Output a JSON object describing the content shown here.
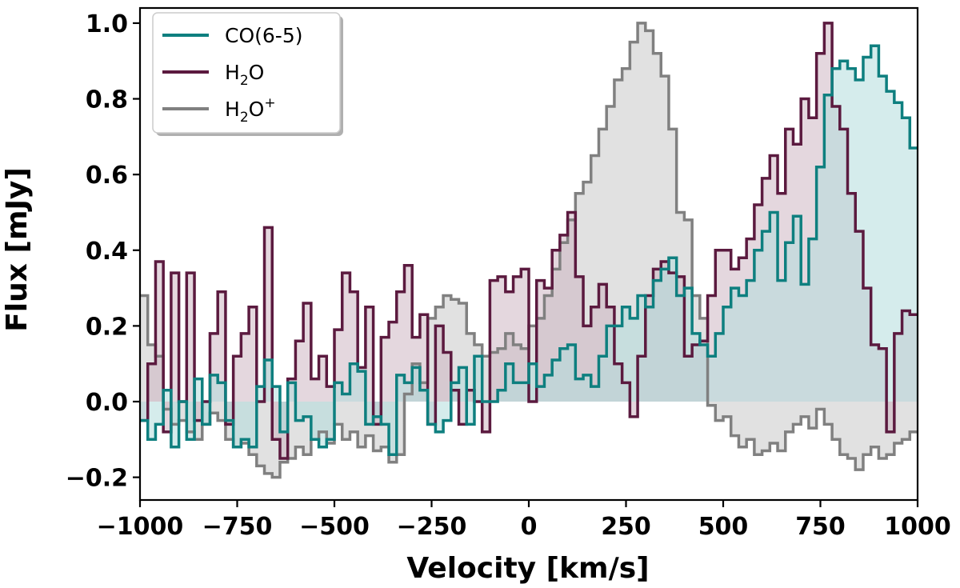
{
  "chart_data": {
    "type": "line",
    "style": "step-filled",
    "xlabel": "Velocity [km/s]",
    "ylabel": "Flux [mJy]",
    "xlim": [
      -1000,
      1000
    ],
    "ylim": [
      -0.26,
      1.04
    ],
    "xticks": [
      -1000,
      -750,
      -500,
      -250,
      0,
      250,
      500,
      750,
      1000
    ],
    "xtick_labels": [
      "−1000",
      "−750",
      "−500",
      "−250",
      "0",
      "250",
      "500",
      "750",
      "1000"
    ],
    "yticks": [
      -0.2,
      0.0,
      0.2,
      0.4,
      0.6,
      0.8,
      1.0
    ],
    "ytick_labels": [
      "−0.2",
      "0.0",
      "0.2",
      "0.4",
      "0.6",
      "0.8",
      "1.0"
    ],
    "bin_width": 20,
    "x_start": -1000,
    "series": [
      {
        "name": "H₂O⁺",
        "legend_base": "H",
        "legend_sub": "2",
        "legend_rest": "O",
        "legend_sup": "+",
        "color": "#808080",
        "fill": "#c8c8c8",
        "values": [
          0.28,
          0.15,
          0.12,
          -0.02,
          -0.06,
          -0.05,
          -0.08,
          -0.1,
          -0.06,
          -0.03,
          -0.05,
          -0.1,
          -0.12,
          -0.11,
          -0.14,
          -0.17,
          -0.19,
          -0.2,
          -0.16,
          -0.15,
          -0.12,
          -0.14,
          -0.1,
          -0.08,
          -0.11,
          -0.06,
          -0.1,
          -0.08,
          -0.12,
          -0.09,
          -0.13,
          -0.12,
          -0.16,
          -0.14,
          0.02,
          0.1,
          0.05,
          0.22,
          0.25,
          0.28,
          0.27,
          0.26,
          0.18,
          0.15,
          0.12,
          0.13,
          0.14,
          0.18,
          0.15,
          0.14,
          0.2,
          0.22,
          0.28,
          0.35,
          0.42,
          0.48,
          0.55,
          0.58,
          0.65,
          0.72,
          0.78,
          0.85,
          0.88,
          0.95,
          1.0,
          0.98,
          0.92,
          0.86,
          0.72,
          0.5,
          0.48,
          0.28,
          0.22,
          -0.01,
          -0.05,
          -0.04,
          -0.09,
          -0.12,
          -0.1,
          -0.14,
          -0.13,
          -0.11,
          -0.13,
          -0.08,
          -0.06,
          -0.04,
          -0.07,
          -0.02,
          -0.06,
          -0.1,
          -0.14,
          -0.15,
          -0.18,
          -0.14,
          -0.12,
          -0.15,
          -0.14,
          -0.11,
          -0.1,
          -0.08
        ],
        "line_width": 3.5
      },
      {
        "name": "H₂O",
        "legend_base": "H",
        "legend_sub": "2",
        "legend_rest": "O",
        "legend_sup": "",
        "color": "#5b1a3f",
        "fill": "#cdb6c2",
        "values": [
          -0.05,
          0.1,
          0.37,
          -0.08,
          0.34,
          0.0,
          0.34,
          -0.05,
          0.0,
          0.18,
          0.29,
          -0.06,
          0.12,
          0.18,
          0.25,
          0.0,
          0.46,
          -0.1,
          -0.15,
          0.06,
          0.16,
          0.26,
          0.06,
          0.12,
          0.04,
          0.19,
          0.34,
          0.29,
          0.09,
          0.25,
          -0.06,
          0.17,
          0.21,
          0.29,
          0.36,
          0.17,
          0.23,
          -0.06,
          0.2,
          0.13,
          0.03,
          -0.06,
          0.03,
          0.0,
          -0.08,
          0.32,
          0.33,
          0.29,
          0.33,
          0.35,
          0.0,
          0.32,
          0.3,
          0.4,
          0.44,
          0.5,
          0.33,
          0.2,
          0.25,
          0.31,
          0.25,
          0.1,
          0.05,
          -0.04,
          0.12,
          0.28,
          0.35,
          0.37,
          0.34,
          0.33,
          0.12,
          0.15,
          0.16,
          0.28,
          0.4,
          0.4,
          0.35,
          0.38,
          0.43,
          0.52,
          0.59,
          0.65,
          0.55,
          0.72,
          0.68,
          0.8,
          0.75,
          0.92,
          1.0,
          0.78,
          0.72,
          0.55,
          0.45,
          0.3,
          0.15,
          0.14,
          -0.08,
          0.18,
          0.24,
          0.23
        ],
        "line_width": 3.5
      },
      {
        "name": "CO(6-5)",
        "legend_base": "CO(6-5)",
        "legend_sub": "",
        "legend_rest": "",
        "legend_sup": "",
        "color": "#0e7f7f",
        "fill": "#b3dcdc",
        "values": [
          -0.05,
          -0.1,
          -0.06,
          0.03,
          -0.12,
          0.0,
          -0.1,
          0.06,
          -0.06,
          0.07,
          0.05,
          -0.05,
          -0.12,
          -0.1,
          -0.12,
          0.04,
          0.11,
          0.04,
          -0.08,
          0.05,
          -0.05,
          -0.04,
          -0.1,
          -0.12,
          -0.1,
          0.05,
          0.02,
          0.1,
          0.08,
          -0.06,
          -0.04,
          -0.06,
          -0.14,
          0.07,
          0.05,
          0.09,
          0.03,
          -0.06,
          -0.08,
          -0.05,
          0.05,
          0.09,
          -0.06,
          0.12,
          0.0,
          0.0,
          0.03,
          0.1,
          0.05,
          0.05,
          0.1,
          0.04,
          0.07,
          0.11,
          0.14,
          0.15,
          0.06,
          0.07,
          0.04,
          0.12,
          0.2,
          0.2,
          0.25,
          0.22,
          0.28,
          0.25,
          0.32,
          0.35,
          0.38,
          0.28,
          0.3,
          0.18,
          0.15,
          0.12,
          0.18,
          0.25,
          0.3,
          0.28,
          0.32,
          0.4,
          0.45,
          0.5,
          0.32,
          0.42,
          0.49,
          0.31,
          0.43,
          0.62,
          0.81,
          0.88,
          0.9,
          0.88,
          0.85,
          0.91,
          0.94,
          0.86,
          0.82,
          0.79,
          0.75,
          0.67
        ],
        "line_width": 3.5
      }
    ],
    "legend": {
      "loc": "upper-left",
      "entries": [
        "CO(6-5)",
        "H₂O",
        "H₂O⁺"
      ]
    }
  }
}
